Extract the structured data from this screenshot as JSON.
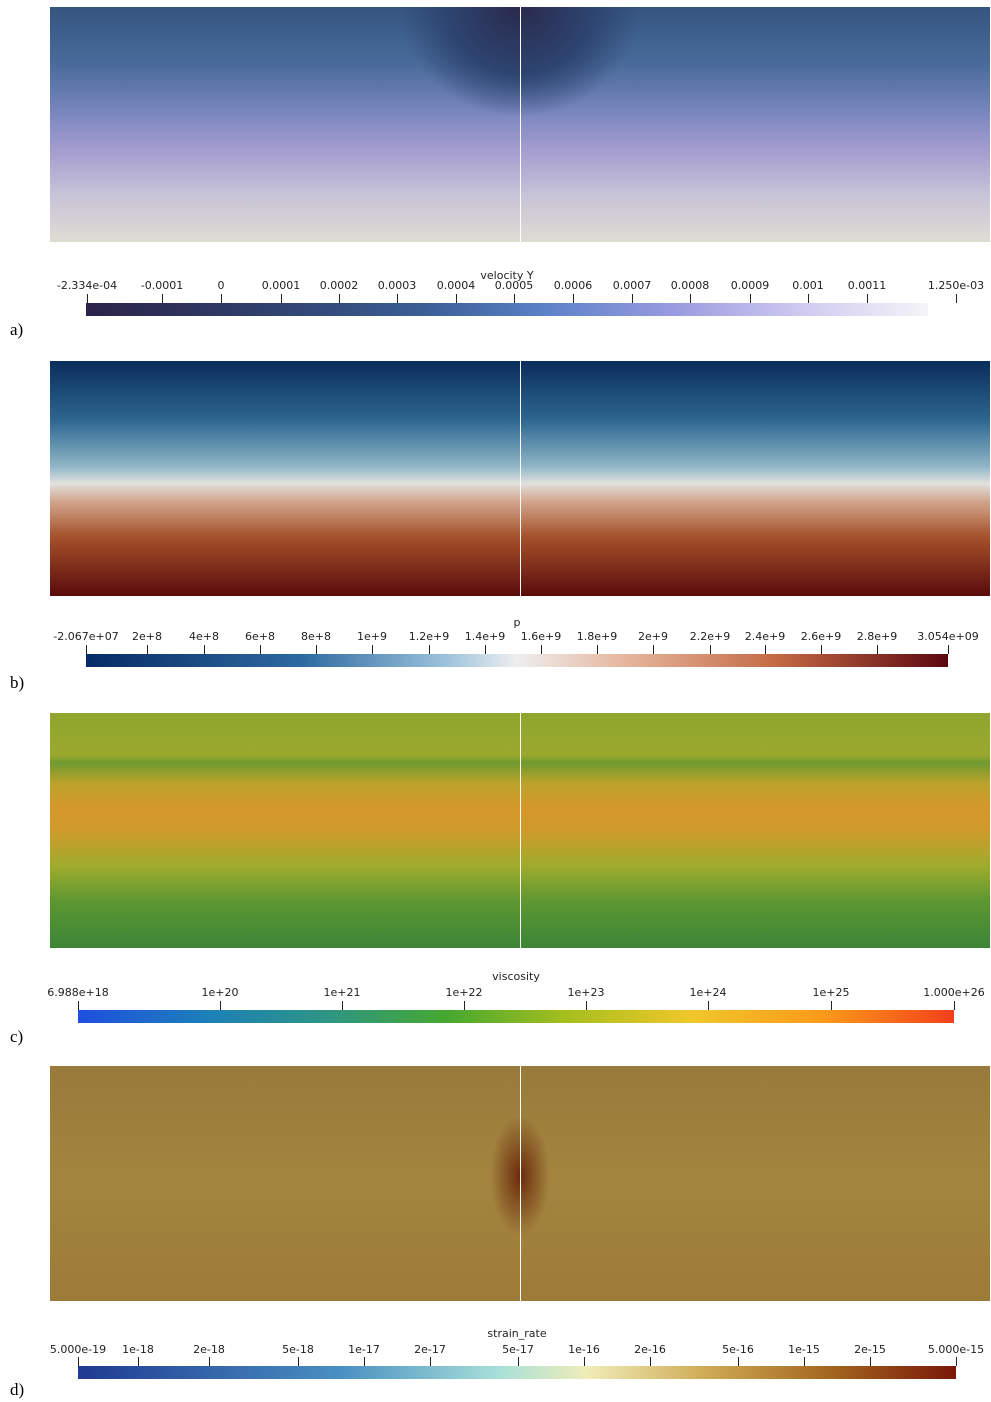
{
  "panels": [
    {
      "label": "a)",
      "colorbar_title": "velocity Y",
      "ticks": [
        "-2.334e-04",
        "-0.0001",
        "0",
        "0.0001",
        "0.0002",
        "0.0003",
        "0.0004",
        "0.0005",
        "0.0006",
        "0.0007",
        "0.0008",
        "0.0009",
        "0.001",
        "0.0011",
        "1.250e-03"
      ]
    },
    {
      "label": "b)",
      "colorbar_title": "p",
      "ticks": [
        "-2.067e+07",
        "2e+8",
        "4e+8",
        "6e+8",
        "8e+8",
        "1e+9",
        "1.2e+9",
        "1.4e+9",
        "1.6e+9",
        "1.8e+9",
        "2e+9",
        "2.2e+9",
        "2.4e+9",
        "2.6e+9",
        "2.8e+9",
        "3.054e+09"
      ]
    },
    {
      "label": "c)",
      "colorbar_title": "viscosity",
      "ticks": [
        "6.988e+18",
        "1e+20",
        "1e+21",
        "1e+22",
        "1e+23",
        "1e+24",
        "1e+25",
        "1.000e+26"
      ]
    },
    {
      "label": "d)",
      "colorbar_title": "strain_rate",
      "ticks": [
        "5.000e-19",
        "1e-18",
        "2e-18",
        "5e-18",
        "1e-17",
        "2e-17",
        "5e-17",
        "1e-16",
        "2e-16",
        "5e-16",
        "1e-15",
        "2e-15",
        "5.000e-15"
      ]
    }
  ]
}
